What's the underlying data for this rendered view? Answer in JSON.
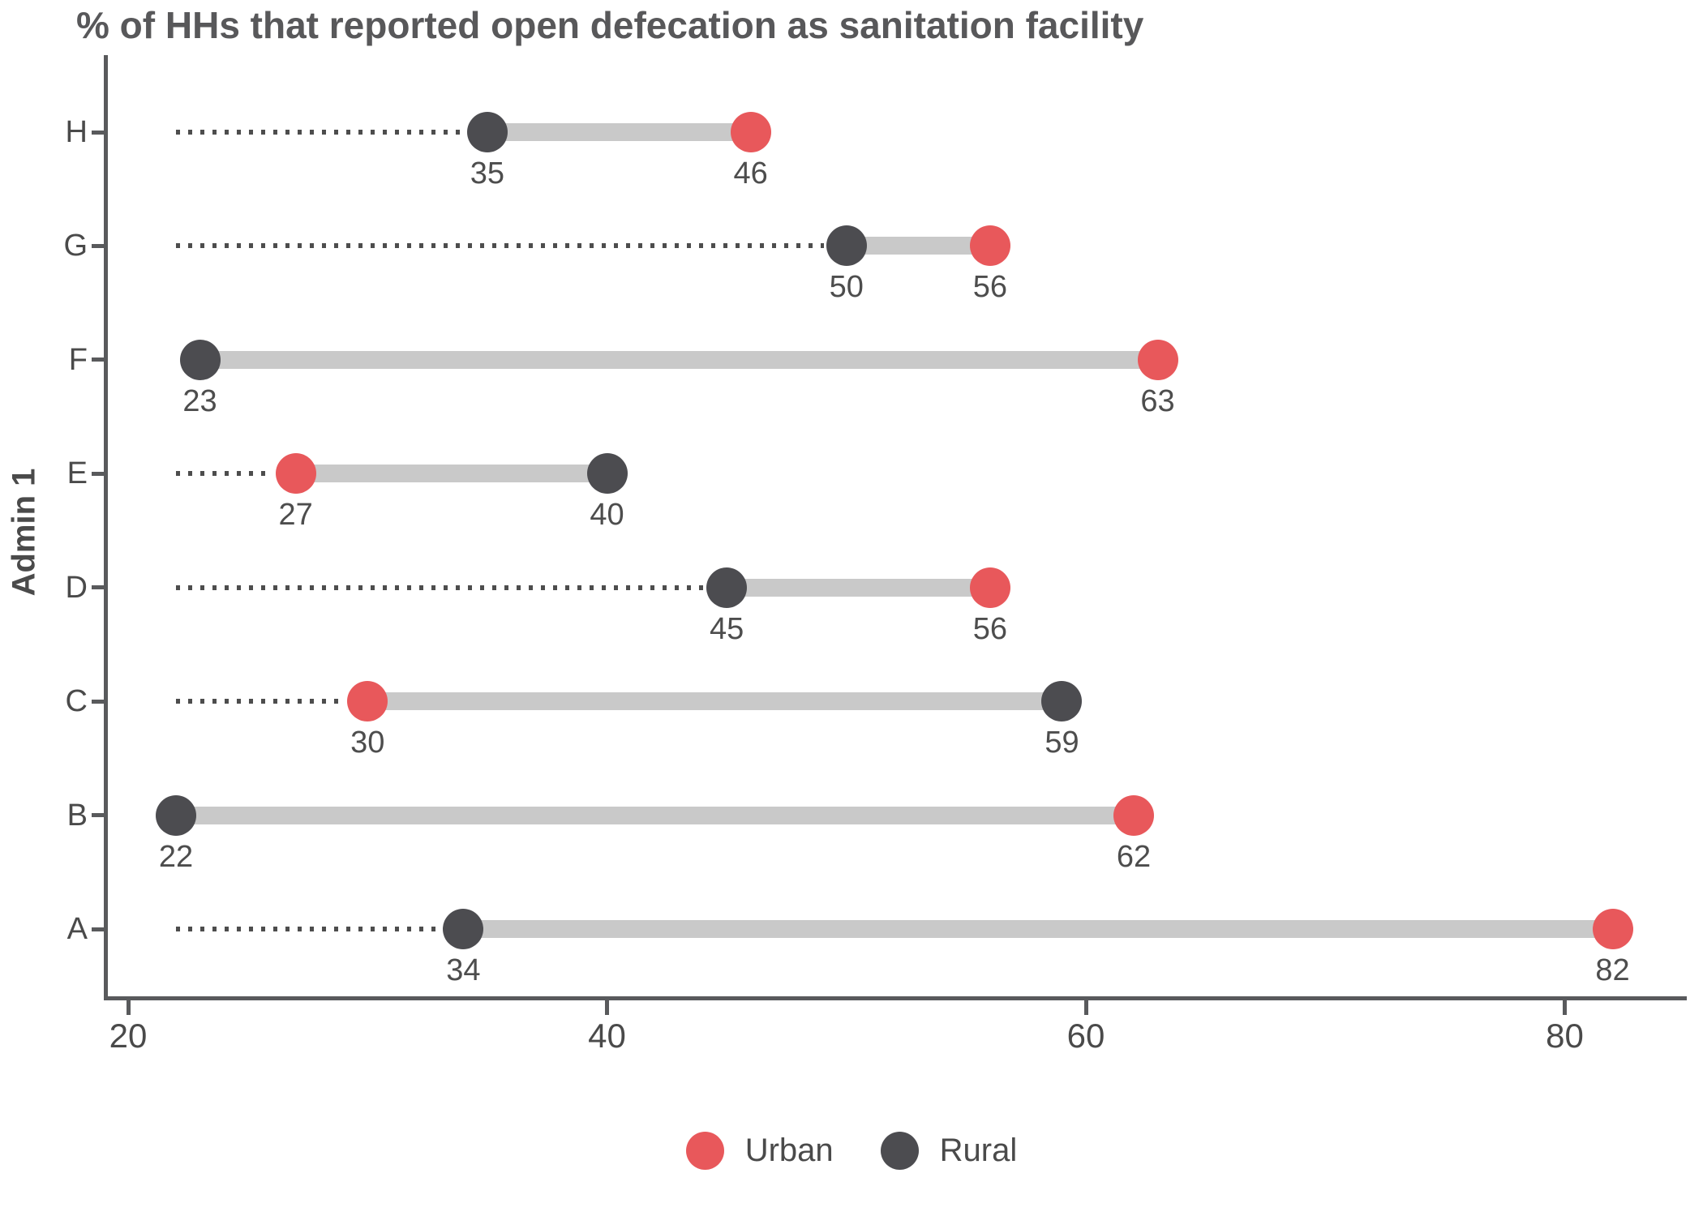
{
  "title": "% of HHs that reported open defecation as sanitation facility",
  "chart_data": {
    "type": "dumbbell",
    "title": "% of HHs that reported open defecation as sanitation facility",
    "ylabel": "Admin 1",
    "xlabel": "",
    "categories": [
      "H",
      "G",
      "F",
      "E",
      "D",
      "C",
      "B",
      "A"
    ],
    "series": [
      {
        "name": "Urban",
        "color": "#e8585b",
        "values": [
          46,
          56,
          63,
          27,
          56,
          30,
          62,
          82
        ]
      },
      {
        "name": "Rural",
        "color": "#4c4c50",
        "values": [
          35,
          50,
          23,
          40,
          45,
          59,
          22,
          34
        ]
      }
    ],
    "x_ticks": [
      20,
      40,
      60,
      80
    ],
    "xlim": [
      19,
      85
    ],
    "dotted_leader_start_value": 22,
    "grid": "off",
    "legend_position": "bottom",
    "connector_color": "#c9c9c9",
    "value_labels_shown": true
  }
}
